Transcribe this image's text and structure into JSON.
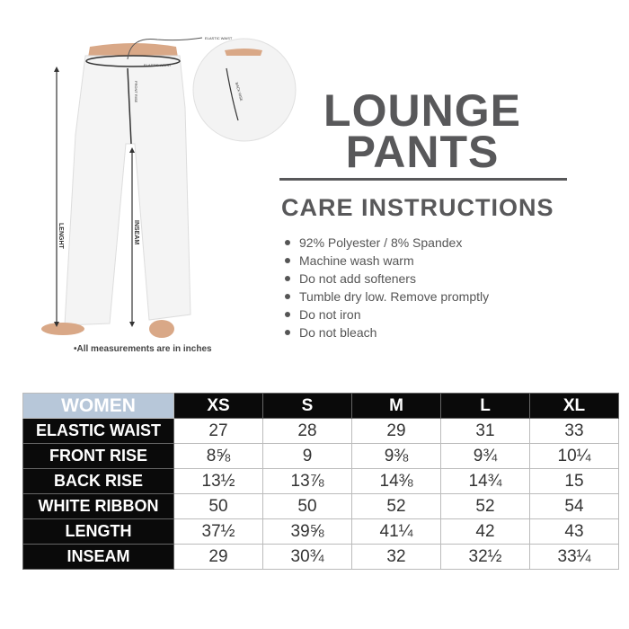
{
  "product": {
    "title_line1": "LOUNGE",
    "title_line2": "PANTS"
  },
  "care": {
    "heading": "CARE INSTRUCTIONS",
    "items": [
      "92% Polyester / 8% Spandex",
      "Machine wash warm",
      "Do not add softeners",
      "Tumble dry low. Remove promptly",
      "Do not iron",
      "Do not bleach"
    ]
  },
  "illustration": {
    "labels": {
      "elastic_waist_top": "ELASTIC WAIST",
      "elastic_waist": "ELASTIC WAIST",
      "front_rise": "FRONT RISE",
      "back_rise": "BACK RISE",
      "length": "LENGHT",
      "inseam": "INSEAM"
    },
    "note": "•All measurements are in inches"
  },
  "size_chart": {
    "corner": "WOMEN",
    "sizes": [
      "XS",
      "S",
      "M",
      "L",
      "XL"
    ],
    "rows": [
      {
        "label": "ELASTIC WAIST",
        "values": [
          "27",
          "28",
          "29",
          "31",
          "33"
        ]
      },
      {
        "label": "FRONT RISE",
        "values": [
          "8⅝",
          "9",
          "9⅜",
          "9¾",
          "10¼"
        ]
      },
      {
        "label": "BACK RISE",
        "values": [
          "13½",
          "13⅞",
          "14⅜",
          "14¾",
          "15"
        ]
      },
      {
        "label": "WHITE RIBBON",
        "values": [
          "50",
          "50",
          "52",
          "52",
          "54"
        ]
      },
      {
        "label": "LENGTH",
        "values": [
          "37½",
          "39⅝",
          "41¼",
          "42",
          "43"
        ]
      },
      {
        "label": "INSEAM",
        "values": [
          "29",
          "30¾",
          "32",
          "32½",
          "33¼"
        ]
      }
    ],
    "colors": {
      "corner_bg": "#b7c7d9",
      "header_bg": "#0a0a0a",
      "text": "#58585a"
    }
  }
}
